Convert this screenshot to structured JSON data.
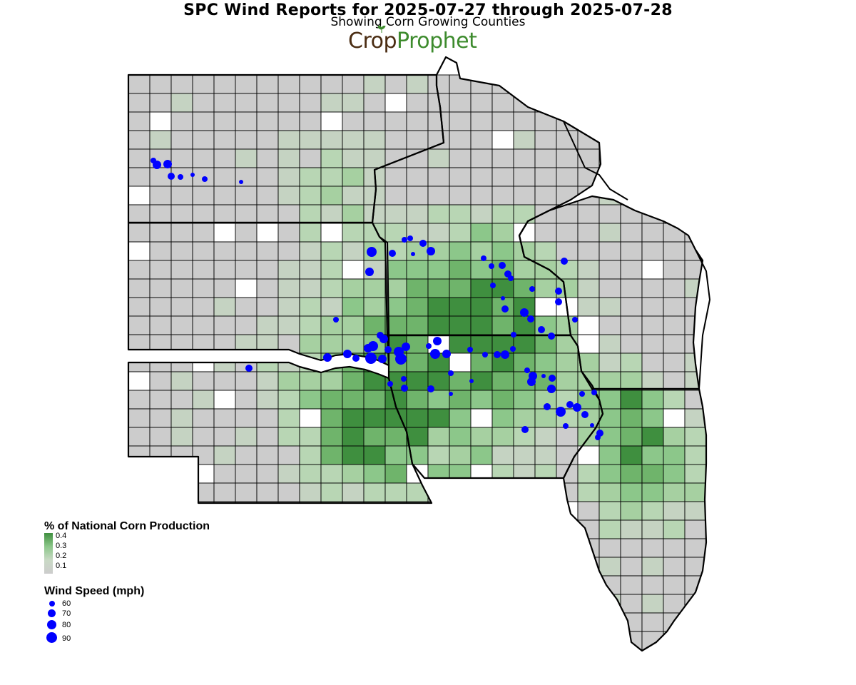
{
  "header": {
    "title": "SPC Wind Reports for 2025-07-27 through 2025-07-28",
    "subtitle": "Showing Corn Growing Counties",
    "logo_crop": "Crop",
    "logo_prophet": "Prophet"
  },
  "colors": {
    "county_none": "#ffffff",
    "county_low": "#cccccc",
    "county_mid": "#8cc78a",
    "county_high": "#3f8f3f",
    "state_border": "#000000",
    "wind_dot": "#0000ff"
  },
  "legend_production": {
    "title": "% of National Corn Production",
    "ticks": [
      "0.4",
      "0.3",
      "0.2",
      "0.1"
    ]
  },
  "legend_wind": {
    "title": "Wind Speed (mph)",
    "entries": [
      {
        "label": "60",
        "mph": 60
      },
      {
        "label": "70",
        "mph": 70
      },
      {
        "label": "80",
        "mph": 80
      },
      {
        "label": "90",
        "mph": 90
      }
    ]
  },
  "map": {
    "states": [
      "North Dakota",
      "Minnesota",
      "South Dakota",
      "Wisconsin",
      "Iowa",
      "Nebraska",
      "Illinois"
    ]
  }
}
